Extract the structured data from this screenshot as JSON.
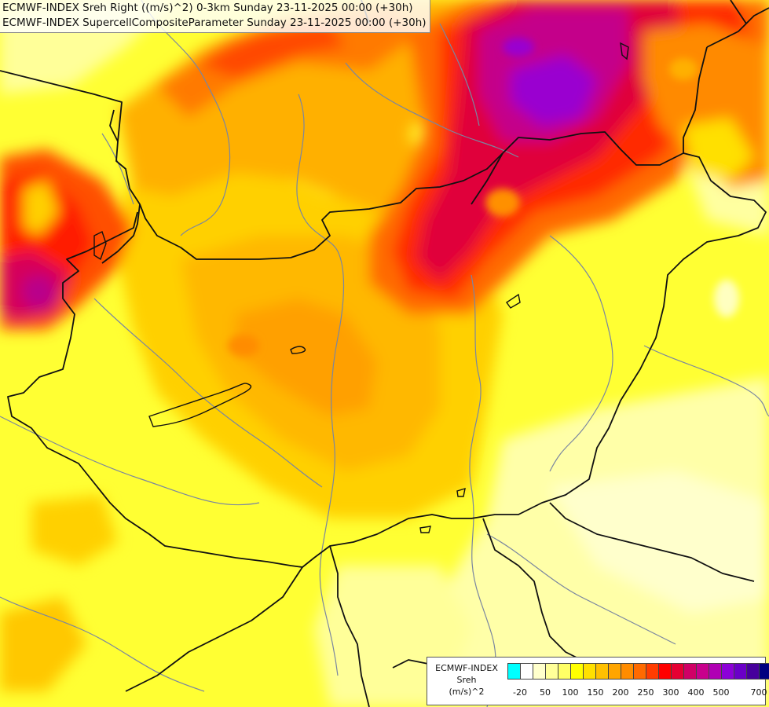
{
  "title": {
    "line1": "ECMWF-INDEX Sreh Right ((m/s)^2) 0-3km Sunday 23-11-2025 00:00 (+30h)",
    "line2": "ECMWF-INDEX SupercellCompositeParameter Sunday 23-11-2025 00:00 (+30h)"
  },
  "legend": {
    "line1": "ECMWF-INDEX",
    "line2": "Sreh",
    "line3": "(m/s)^2",
    "colors": [
      "#00ffff",
      "#ffffff",
      "#ffffcc",
      "#ffff99",
      "#ffff66",
      "#ffff00",
      "#ffe000",
      "#ffc000",
      "#ffa500",
      "#ff8c00",
      "#ff6a00",
      "#ff3c00",
      "#ff0000",
      "#e60033",
      "#d00066",
      "#c8008c",
      "#b000b4",
      "#8c00d8",
      "#6a00c8",
      "#46009c",
      "#000080"
    ],
    "ticks": [
      "-20",
      "50",
      "100",
      "150",
      "200",
      "250",
      "300",
      "400",
      "500",
      "700"
    ]
  },
  "colors": {
    "background": "#ffff33",
    "border_line": "#111111",
    "river_line": "#7a86a0"
  }
}
